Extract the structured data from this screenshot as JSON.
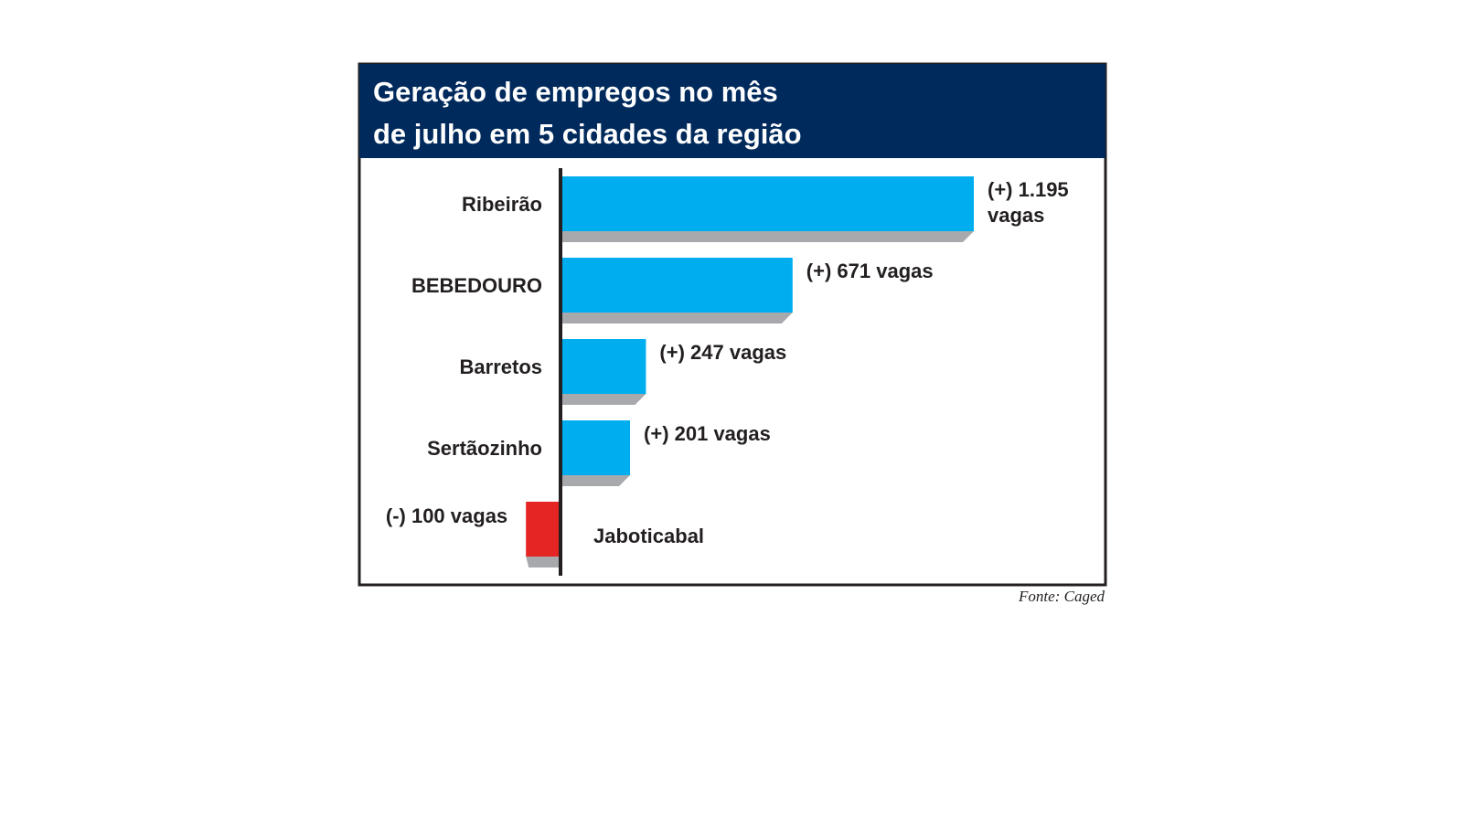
{
  "chart_data": {
    "type": "bar",
    "orientation": "horizontal",
    "title_lines": [
      "Geração de empregos no mês",
      "de julho em 5 cidades da região"
    ],
    "categories": [
      "Ribeirão",
      "BEBEDOURO",
      "Barretos",
      "Sertãozinho",
      "Jaboticabal"
    ],
    "values": [
      1195,
      671,
      247,
      201,
      -100
    ],
    "value_labels": [
      [
        "(+) 1.195",
        "vagas"
      ],
      [
        "(+) 671 vagas"
      ],
      [
        "(+) 247 vagas"
      ],
      [
        "(+) 201 vagas"
      ],
      [
        "(-) 100 vagas"
      ]
    ],
    "xlabel": "",
    "ylabel": "",
    "grid": false,
    "legend": "none",
    "source": "Fonte: Caged",
    "colors": {
      "header_background": "#002a5c",
      "positive_bar": "#00aeef",
      "negative_bar": "#e42524",
      "bar_shadow": "#a7a9ac",
      "axis": "#231f20",
      "frame": "#231f20"
    }
  }
}
